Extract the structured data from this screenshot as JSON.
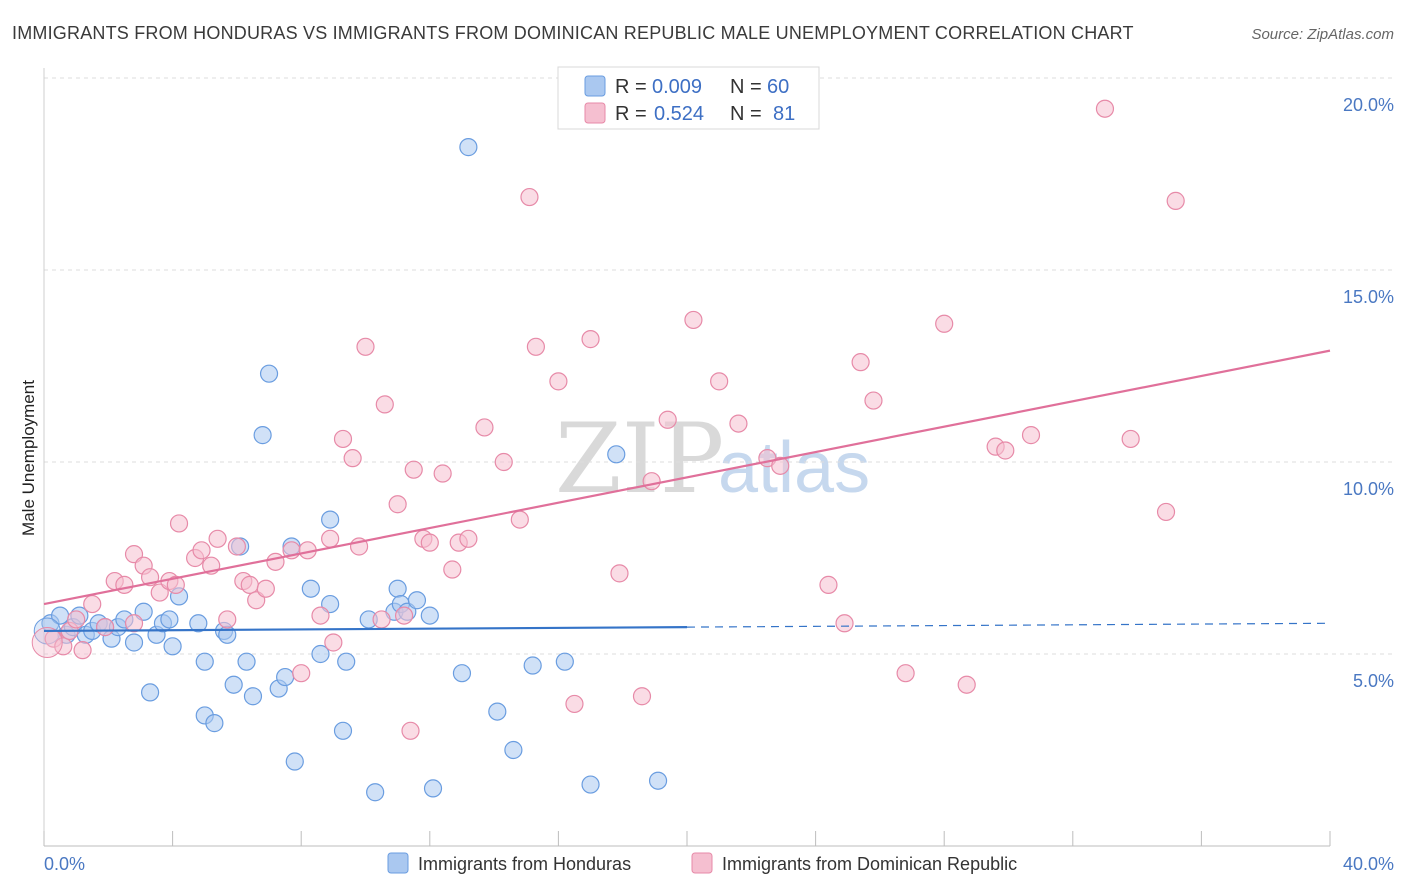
{
  "header": {
    "title": "IMMIGRANTS FROM HONDURAS VS IMMIGRANTS FROM DOMINICAN REPUBLIC MALE UNEMPLOYMENT CORRELATION CHART",
    "source": "Source: ZipAtlas.com"
  },
  "watermark": {
    "zip": "ZIP",
    "atlas": "atlas"
  },
  "legend": {
    "rows": [
      {
        "r_label": "R =",
        "r_value": "0.009",
        "n_label": "N =",
        "n_value": "60"
      },
      {
        "r_label": "R =",
        "r_value": "0.524",
        "n_label": "N =",
        "n_value": "81"
      }
    ]
  },
  "chart_data": {
    "type": "scatter",
    "title": "IMMIGRANTS FROM HONDURAS VS IMMIGRANTS FROM DOMINICAN REPUBLIC MALE UNEMPLOYMENT CORRELATION CHART",
    "xlabel": "",
    "ylabel": "Male Unemployment",
    "xlim": [
      0,
      40
    ],
    "ylim": [
      0,
      20
    ],
    "x_tick_labels": [
      "0.0%",
      "40.0%"
    ],
    "y_ticks": [
      5,
      10,
      15,
      20
    ],
    "y_tick_labels": [
      "5.0%",
      "10.0%",
      "15.0%",
      "20.0%"
    ],
    "grid": true,
    "legend_position": "top-center",
    "series": [
      {
        "name": "Immigrants from Honduras",
        "color": "#6a9de0",
        "fill": "#aac8f0",
        "points": [
          [
            0.2,
            5.8
          ],
          [
            0.5,
            6.0
          ],
          [
            0.7,
            5.5
          ],
          [
            0.9,
            5.7
          ],
          [
            1.1,
            6.0
          ],
          [
            1.3,
            5.5
          ],
          [
            1.5,
            5.6
          ],
          [
            1.7,
            5.8
          ],
          [
            1.9,
            5.7
          ],
          [
            2.1,
            5.4
          ],
          [
            2.3,
            5.7
          ],
          [
            2.5,
            5.9
          ],
          [
            2.8,
            5.3
          ],
          [
            3.1,
            6.1
          ],
          [
            3.3,
            4.0
          ],
          [
            3.5,
            5.5
          ],
          [
            3.7,
            5.8
          ],
          [
            3.9,
            5.9
          ],
          [
            4.0,
            5.2
          ],
          [
            4.2,
            6.5
          ],
          [
            4.8,
            5.8
          ],
          [
            5.0,
            4.8
          ],
          [
            5.0,
            3.4
          ],
          [
            5.3,
            3.2
          ],
          [
            5.6,
            5.6
          ],
          [
            5.7,
            5.5
          ],
          [
            5.9,
            4.2
          ],
          [
            6.1,
            7.8
          ],
          [
            6.3,
            4.8
          ],
          [
            6.5,
            3.9
          ],
          [
            6.8,
            10.7
          ],
          [
            7.0,
            12.3
          ],
          [
            7.3,
            4.1
          ],
          [
            7.5,
            4.4
          ],
          [
            7.7,
            7.8
          ],
          [
            7.8,
            2.2
          ],
          [
            8.3,
            6.7
          ],
          [
            8.6,
            5.0
          ],
          [
            8.9,
            8.5
          ],
          [
            8.9,
            6.3
          ],
          [
            9.3,
            3.0
          ],
          [
            9.4,
            4.8
          ],
          [
            10.1,
            5.9
          ],
          [
            10.3,
            1.4
          ],
          [
            10.9,
            6.1
          ],
          [
            11.0,
            6.7
          ],
          [
            11.1,
            6.3
          ],
          [
            11.3,
            6.1
          ],
          [
            11.6,
            6.4
          ],
          [
            12.0,
            6.0
          ],
          [
            12.1,
            1.5
          ],
          [
            13.0,
            4.5
          ],
          [
            13.2,
            18.2
          ],
          [
            14.1,
            3.5
          ],
          [
            14.6,
            2.5
          ],
          [
            15.2,
            4.7
          ],
          [
            16.2,
            4.8
          ],
          [
            17.0,
            1.6
          ],
          [
            17.8,
            10.2
          ],
          [
            19.1,
            1.7
          ]
        ],
        "trend": {
          "x0": 0,
          "y0": 5.6,
          "x1": 20,
          "y1": 5.7,
          "dashed_to_x": 40,
          "dashed_to_y": 5.8
        }
      },
      {
        "name": "Immigrants from Dominican Republic",
        "color": "#e78aa8",
        "fill": "#f5bfd0",
        "points": [
          [
            0.3,
            5.4
          ],
          [
            0.6,
            5.2
          ],
          [
            0.8,
            5.6
          ],
          [
            1.0,
            5.9
          ],
          [
            1.2,
            5.1
          ],
          [
            1.5,
            6.3
          ],
          [
            1.9,
            5.7
          ],
          [
            2.2,
            6.9
          ],
          [
            2.5,
            6.8
          ],
          [
            2.8,
            5.8
          ],
          [
            2.8,
            7.6
          ],
          [
            3.1,
            7.3
          ],
          [
            3.3,
            7.0
          ],
          [
            3.6,
            6.6
          ],
          [
            3.9,
            6.9
          ],
          [
            4.1,
            6.8
          ],
          [
            4.2,
            8.4
          ],
          [
            4.7,
            7.5
          ],
          [
            4.9,
            7.7
          ],
          [
            5.2,
            7.3
          ],
          [
            5.4,
            8.0
          ],
          [
            5.7,
            5.9
          ],
          [
            6.0,
            7.8
          ],
          [
            6.2,
            6.9
          ],
          [
            6.4,
            6.8
          ],
          [
            6.6,
            6.4
          ],
          [
            6.9,
            6.7
          ],
          [
            7.2,
            7.4
          ],
          [
            7.7,
            7.7
          ],
          [
            8.0,
            4.5
          ],
          [
            8.2,
            7.7
          ],
          [
            8.6,
            6.0
          ],
          [
            8.9,
            8.0
          ],
          [
            9.0,
            5.3
          ],
          [
            9.3,
            10.6
          ],
          [
            9.6,
            10.1
          ],
          [
            9.8,
            7.8
          ],
          [
            10.0,
            13.0
          ],
          [
            10.5,
            5.9
          ],
          [
            10.6,
            11.5
          ],
          [
            11.0,
            8.9
          ],
          [
            11.2,
            6.0
          ],
          [
            11.4,
            3.0
          ],
          [
            11.5,
            9.8
          ],
          [
            11.8,
            8.0
          ],
          [
            12.0,
            7.9
          ],
          [
            12.4,
            9.7
          ],
          [
            12.7,
            7.2
          ],
          [
            12.9,
            7.9
          ],
          [
            13.2,
            8.0
          ],
          [
            13.7,
            10.9
          ],
          [
            14.3,
            10.0
          ],
          [
            14.8,
            8.5
          ],
          [
            15.1,
            16.9
          ],
          [
            15.3,
            13.0
          ],
          [
            16.0,
            12.1
          ],
          [
            16.5,
            3.7
          ],
          [
            17.0,
            13.2
          ],
          [
            17.9,
            7.1
          ],
          [
            18.6,
            3.9
          ],
          [
            18.9,
            9.5
          ],
          [
            19.4,
            11.1
          ],
          [
            20.2,
            13.7
          ],
          [
            21.0,
            12.1
          ],
          [
            21.6,
            11.0
          ],
          [
            22.5,
            10.1
          ],
          [
            22.9,
            9.9
          ],
          [
            24.4,
            6.8
          ],
          [
            24.9,
            5.8
          ],
          [
            25.4,
            12.6
          ],
          [
            25.8,
            11.6
          ],
          [
            26.8,
            4.5
          ],
          [
            28.0,
            13.6
          ],
          [
            28.7,
            4.2
          ],
          [
            29.6,
            10.4
          ],
          [
            29.9,
            10.3
          ],
          [
            30.7,
            10.7
          ],
          [
            33.0,
            19.2
          ],
          [
            33.8,
            10.6
          ],
          [
            34.9,
            8.7
          ],
          [
            35.2,
            16.8
          ]
        ],
        "trend": {
          "x0": 0,
          "y0": 6.3,
          "x1": 40,
          "y1": 12.9
        }
      }
    ]
  },
  "bottom_legend": {
    "items": [
      {
        "label": "Immigrants from Honduras"
      },
      {
        "label": "Immigrants from Dominican Republic"
      }
    ]
  },
  "colors": {
    "blue_stroke": "#6a9de0",
    "blue_fill": "#aac8f0",
    "blue_line": "#3574c8",
    "pink_stroke": "#e78aa8",
    "pink_fill": "#f5bfd0",
    "pink_line": "#e0709a",
    "grid": "#dddddd"
  }
}
